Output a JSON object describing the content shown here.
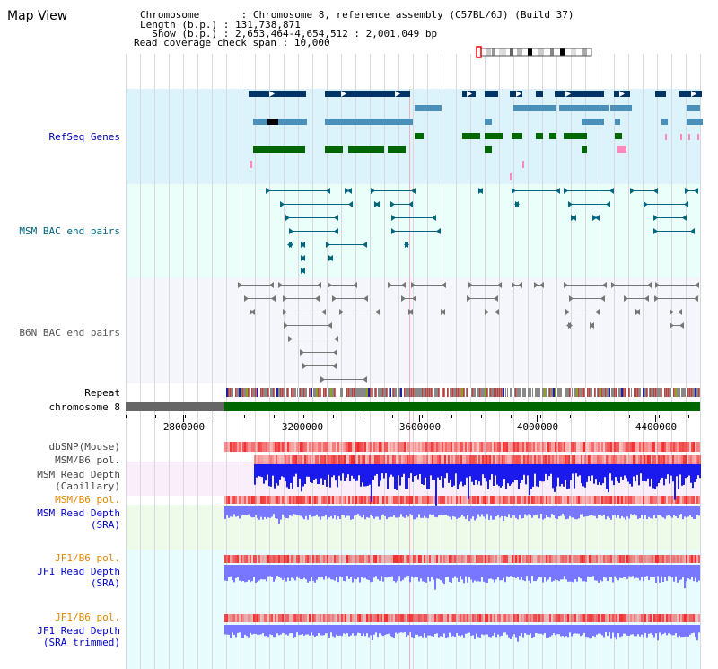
{
  "header": {
    "title": "Map View",
    "info": [
      {
        "label": "Chromosome",
        "value": "Chromosome 8, reference assembly (C57BL/6J) (Build 37)"
      },
      {
        "label": "Length (b.p.)",
        "value": "131,738,871"
      },
      {
        "label": "Show (b.p.)",
        "value": "2,653,464-4,654,512 : 2,001,049 bp"
      },
      {
        "label": "Read coverage check span",
        "value": "10,000"
      }
    ]
  },
  "tracks": {
    "refseq": {
      "label": "RefSeq Genes",
      "color": "#0000aa",
      "bg": "#ddf3fb"
    },
    "msm_bac": {
      "label": "MSM BAC end pairs",
      "color": "#006680",
      "bg": "#eafffa"
    },
    "b6n_bac": {
      "label": "B6N BAC end pairs",
      "color": "#555555",
      "bg": "#f5f6fb"
    },
    "repeat": {
      "label": "Repeat"
    },
    "chromosome": {
      "label": "chromosome 8"
    },
    "dbsnp": {
      "label": "dbSNP(Mouse)",
      "color": "#444444"
    },
    "msm_pol_cap": {
      "label": "MSM/B6 pol.",
      "color": "#444444"
    },
    "msm_depth_cap": {
      "label": "MSM Read Depth\n(Capillary)",
      "color": "#444444"
    },
    "msm_pol_sra": {
      "label": "MSM/B6 pol.",
      "color": "#e08800"
    },
    "msm_depth_sra": {
      "label": "MSM Read Depth\n(SRA)",
      "color": "#0000cc"
    },
    "jf1_pol": {
      "label": "JF1/B6 pol.",
      "color": "#e08800"
    },
    "jf1_depth": {
      "label": "JF1 Read Depth\n(SRA)",
      "color": "#0000cc"
    },
    "jf1_pol_trim": {
      "label": "JF1/B6 pol.",
      "color": "#e08800"
    },
    "jf1_depth_trim": {
      "label": "JF1 Read Depth\n(SRA trimmed)",
      "color": "#0000cc"
    }
  },
  "axis": {
    "ticks": [
      "2800000",
      "3200000",
      "3600000",
      "4000000",
      "4400000"
    ]
  },
  "colors": {
    "gene_dark": "#003366",
    "gene_mid": "#4a90b8",
    "gene_green": "#006600",
    "pink": "#ff88bb",
    "bac_teal": "#006680",
    "bac_gray": "#777777",
    "chrom_gray": "#666666",
    "chrom_green": "#006600",
    "depth_blue": "#1a1aee",
    "depth_light": "#7777ff",
    "pol_red": "#ee2222"
  }
}
